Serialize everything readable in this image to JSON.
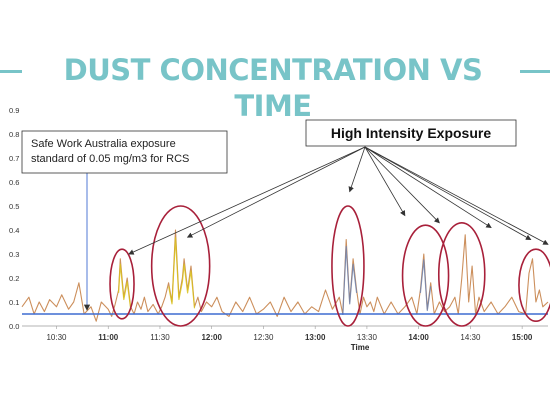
{
  "page": {
    "title": "DUST CONCENTRATION VS TIME"
  },
  "colors": {
    "title": "#78c4c8",
    "series_main": "#cc8f5c",
    "series_yellow": "#d9c21c",
    "series_blue_trace": "#6f83ad",
    "standard_line": "#3d6bd1",
    "highlight_ellipse": "#a8203a",
    "annotation_arrow": "#333333"
  },
  "chart_data": {
    "type": "line",
    "title": "DUST CONCENTRATION VS TIME",
    "xlabel": "Time",
    "ylabel": "",
    "ylim": [
      0,
      0.9
    ],
    "y_ticks": [
      "0.0",
      "0.1",
      "0.2",
      "0.3",
      "0.4",
      "0.5",
      "0.6",
      "0.7",
      "0.8",
      "0.9"
    ],
    "x_ticks": [
      "10:30",
      "11:00",
      "11:30",
      "12:00",
      "12:30",
      "13:00",
      "13:30",
      "14:00",
      "14:30",
      "15:00"
    ],
    "x_range": [
      "10:10",
      "15:15"
    ],
    "grid": false,
    "legend": "none",
    "reference_line": {
      "label": "Safe Work Australia exposure standard of 0.05 mg/m3 for RCS",
      "value": 0.05
    },
    "annotations": {
      "standard_note": "Safe Work Australia exposure standard of 0.05 mg/m3 for RCS",
      "high_intensity_label": "High Intensity Exposure"
    },
    "series": [
      {
        "x": [
          "10:10",
          "10:14",
          "10:17",
          "10:20",
          "10:23",
          "10:26",
          "10:30",
          "10:33",
          "10:37",
          "10:40",
          "10:43",
          "10:46",
          "10:50",
          "10:53",
          "10:56",
          "11:00",
          "11:02",
          "11:04",
          "11:06",
          "11:07",
          "11:09",
          "11:11",
          "11:13",
          "11:15",
          "11:17",
          "11:19",
          "11:21",
          "11:23",
          "11:26",
          "11:29",
          "11:31",
          "11:33",
          "11:35",
          "11:37",
          "11:39",
          "11:41",
          "11:43",
          "11:44",
          "11:46",
          "11:48",
          "11:50",
          "11:52",
          "11:54",
          "11:57",
          "12:00",
          "12:03",
          "12:06",
          "12:10",
          "12:14",
          "12:18",
          "12:22",
          "12:26",
          "12:30",
          "12:34",
          "12:38",
          "12:42",
          "12:46",
          "12:50",
          "12:54",
          "12:58",
          "13:02",
          "13:06",
          "13:10",
          "13:14",
          "13:16",
          "13:18",
          "13:20",
          "13:22",
          "13:24",
          "13:26",
          "13:28",
          "13:30",
          "13:32",
          "13:34",
          "13:36",
          "13:40",
          "13:44",
          "13:48",
          "13:52",
          "13:56",
          "13:59",
          "14:01",
          "14:03",
          "14:05",
          "14:07",
          "14:09",
          "14:12",
          "14:15",
          "14:18",
          "14:21",
          "14:23",
          "14:25",
          "14:27",
          "14:29",
          "14:31",
          "14:33",
          "14:35",
          "14:38",
          "14:42",
          "14:46",
          "14:50",
          "14:54",
          "14:58",
          "15:02",
          "15:04",
          "15:06",
          "15:08",
          "15:10",
          "15:12",
          "15:15"
        ],
        "values": [
          0.08,
          0.12,
          0.05,
          0.1,
          0.06,
          0.11,
          0.08,
          0.13,
          0.07,
          0.1,
          0.18,
          0.05,
          0.08,
          0.02,
          0.1,
          0.07,
          0.04,
          0.09,
          0.15,
          0.28,
          0.12,
          0.2,
          0.08,
          0.05,
          0.1,
          0.07,
          0.12,
          0.06,
          0.09,
          0.05,
          0.08,
          0.12,
          0.18,
          0.1,
          0.4,
          0.12,
          0.2,
          0.28,
          0.15,
          0.25,
          0.08,
          0.12,
          0.06,
          0.1,
          0.08,
          0.12,
          0.06,
          0.04,
          0.1,
          0.06,
          0.12,
          0.05,
          0.07,
          0.1,
          0.04,
          0.12,
          0.06,
          0.1,
          0.05,
          0.08,
          0.06,
          0.15,
          0.07,
          0.12,
          0.05,
          0.36,
          0.1,
          0.28,
          0.15,
          0.05,
          0.12,
          0.08,
          0.1,
          0.06,
          0.12,
          0.05,
          0.1,
          0.05,
          0.08,
          0.12,
          0.05,
          0.15,
          0.3,
          0.07,
          0.18,
          0.05,
          0.1,
          0.06,
          0.08,
          0.12,
          0.05,
          0.2,
          0.38,
          0.1,
          0.25,
          0.05,
          0.12,
          0.06,
          0.1,
          0.05,
          0.08,
          0.12,
          0.06,
          0.05,
          0.22,
          0.28,
          0.1,
          0.15,
          0.08,
          0.1
        ]
      }
    ]
  }
}
